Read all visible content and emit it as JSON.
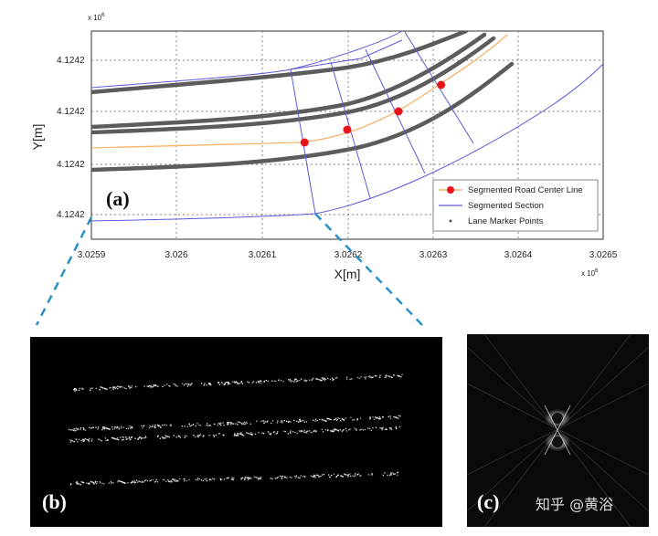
{
  "chart_data": [
    {
      "type": "line",
      "panel_label": "(a)",
      "xlabel": "X[m]",
      "ylabel": "Y[m]",
      "x_exponent": "x 10",
      "y_exponent": "x 10",
      "exponent_sup": "6",
      "xticks": [
        "3.0259",
        "3.026",
        "3.0261",
        "3.0262",
        "3.0263",
        "3.0264",
        "3.0265"
      ],
      "yticks": [
        "4.1242",
        "4.1242",
        "4.1242",
        "4.1242"
      ],
      "xlim": [
        3.0259,
        3.0265
      ],
      "grid": true,
      "legend_position": "bottom-right",
      "legend": [
        {
          "label": "Segmented Road Center Line",
          "color": "#f5b36a",
          "marker": "red-dot"
        },
        {
          "label": "Segmented Section",
          "color": "#5b5bd6",
          "marker": "line"
        },
        {
          "label": "Lane Marker Points",
          "color": "#555555",
          "marker": "dot"
        }
      ],
      "center_points_x": [
        3.02615,
        3.0262,
        3.02626,
        3.02631
      ],
      "colors": {
        "center_line": "#f5b36a",
        "center_point": "#e8141a",
        "section": "#5b5bd6",
        "lane_marker": "#5c5c5c"
      }
    },
    {
      "type": "image",
      "panel_label": "(b)",
      "description_colors": {
        "background": "#000000"
      }
    },
    {
      "type": "image",
      "panel_label": "(c)",
      "description_colors": {
        "background": "#0a0a0a"
      }
    }
  ],
  "watermark": "知乎 @黄浴",
  "connector_color": "#2a8fc8"
}
